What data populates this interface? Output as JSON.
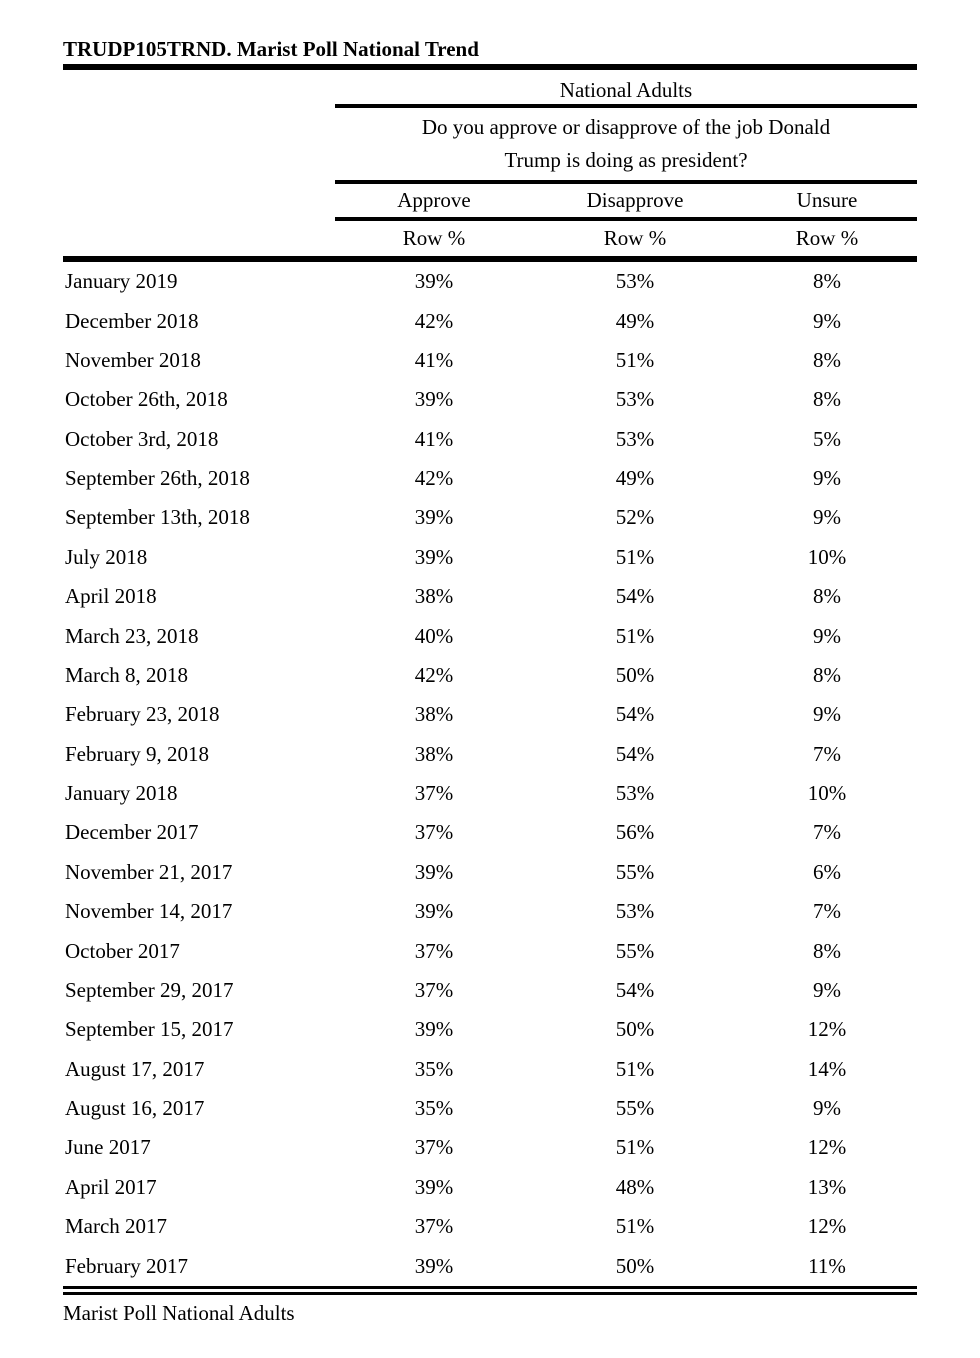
{
  "title": "TRUDP105TRND. Marist Poll National Trend",
  "header": {
    "population_label": "National Adults",
    "question_line1": "Do you approve or disapprove of the job Donald",
    "question_line2": "Trump is doing as president?",
    "columns": [
      "Approve",
      "Disapprove",
      "Unsure"
    ],
    "subcolumns": [
      "Row %",
      "Row %",
      "Row %"
    ]
  },
  "table": {
    "date_column_label": "",
    "rows": [
      {
        "date": "January 2019",
        "approve": "39%",
        "disapprove": "53%",
        "unsure": "8%"
      },
      {
        "date": "December 2018",
        "approve": "42%",
        "disapprove": "49%",
        "unsure": "9%"
      },
      {
        "date": "November 2018",
        "approve": "41%",
        "disapprove": "51%",
        "unsure": "8%"
      },
      {
        "date": "October 26th, 2018",
        "approve": "39%",
        "disapprove": "53%",
        "unsure": "8%"
      },
      {
        "date": "October 3rd, 2018",
        "approve": "41%",
        "disapprove": "53%",
        "unsure": "5%"
      },
      {
        "date": "September 26th, 2018",
        "approve": "42%",
        "disapprove": "49%",
        "unsure": "9%"
      },
      {
        "date": "September 13th, 2018",
        "approve": "39%",
        "disapprove": "52%",
        "unsure": "9%"
      },
      {
        "date": "July 2018",
        "approve": "39%",
        "disapprove": "51%",
        "unsure": "10%"
      },
      {
        "date": "April 2018",
        "approve": "38%",
        "disapprove": "54%",
        "unsure": "8%"
      },
      {
        "date": "March 23, 2018",
        "approve": "40%",
        "disapprove": "51%",
        "unsure": "9%"
      },
      {
        "date": "March 8, 2018",
        "approve": "42%",
        "disapprove": "50%",
        "unsure": "8%"
      },
      {
        "date": "February 23, 2018",
        "approve": "38%",
        "disapprove": "54%",
        "unsure": "9%"
      },
      {
        "date": "February 9, 2018",
        "approve": "38%",
        "disapprove": "54%",
        "unsure": "7%"
      },
      {
        "date": "January 2018",
        "approve": "37%",
        "disapprove": "53%",
        "unsure": "10%"
      },
      {
        "date": "December 2017",
        "approve": "37%",
        "disapprove": "56%",
        "unsure": "7%"
      },
      {
        "date": "November 21, 2017",
        "approve": "39%",
        "disapprove": "55%",
        "unsure": "6%"
      },
      {
        "date": "November 14, 2017",
        "approve": "39%",
        "disapprove": "53%",
        "unsure": "7%"
      },
      {
        "date": "October 2017",
        "approve": "37%",
        "disapprove": "55%",
        "unsure": "8%"
      },
      {
        "date": "September 29, 2017",
        "approve": "37%",
        "disapprove": "54%",
        "unsure": "9%"
      },
      {
        "date": "September 15, 2017",
        "approve": "39%",
        "disapprove": "50%",
        "unsure": "12%"
      },
      {
        "date": "August 17, 2017",
        "approve": "35%",
        "disapprove": "51%",
        "unsure": "14%"
      },
      {
        "date": "August 16, 2017",
        "approve": "35%",
        "disapprove": "55%",
        "unsure": "9%"
      },
      {
        "date": "June 2017",
        "approve": "37%",
        "disapprove": "51%",
        "unsure": "12%"
      },
      {
        "date": "April 2017",
        "approve": "39%",
        "disapprove": "48%",
        "unsure": "13%"
      },
      {
        "date": "March 2017",
        "approve": "37%",
        "disapprove": "51%",
        "unsure": "12%"
      },
      {
        "date": "February 2017",
        "approve": "39%",
        "disapprove": "50%",
        "unsure": "11%"
      }
    ]
  },
  "footer": "Marist Poll National Adults",
  "colors": {
    "text": "#000000",
    "background": "#ffffff",
    "rule": "#000000"
  }
}
